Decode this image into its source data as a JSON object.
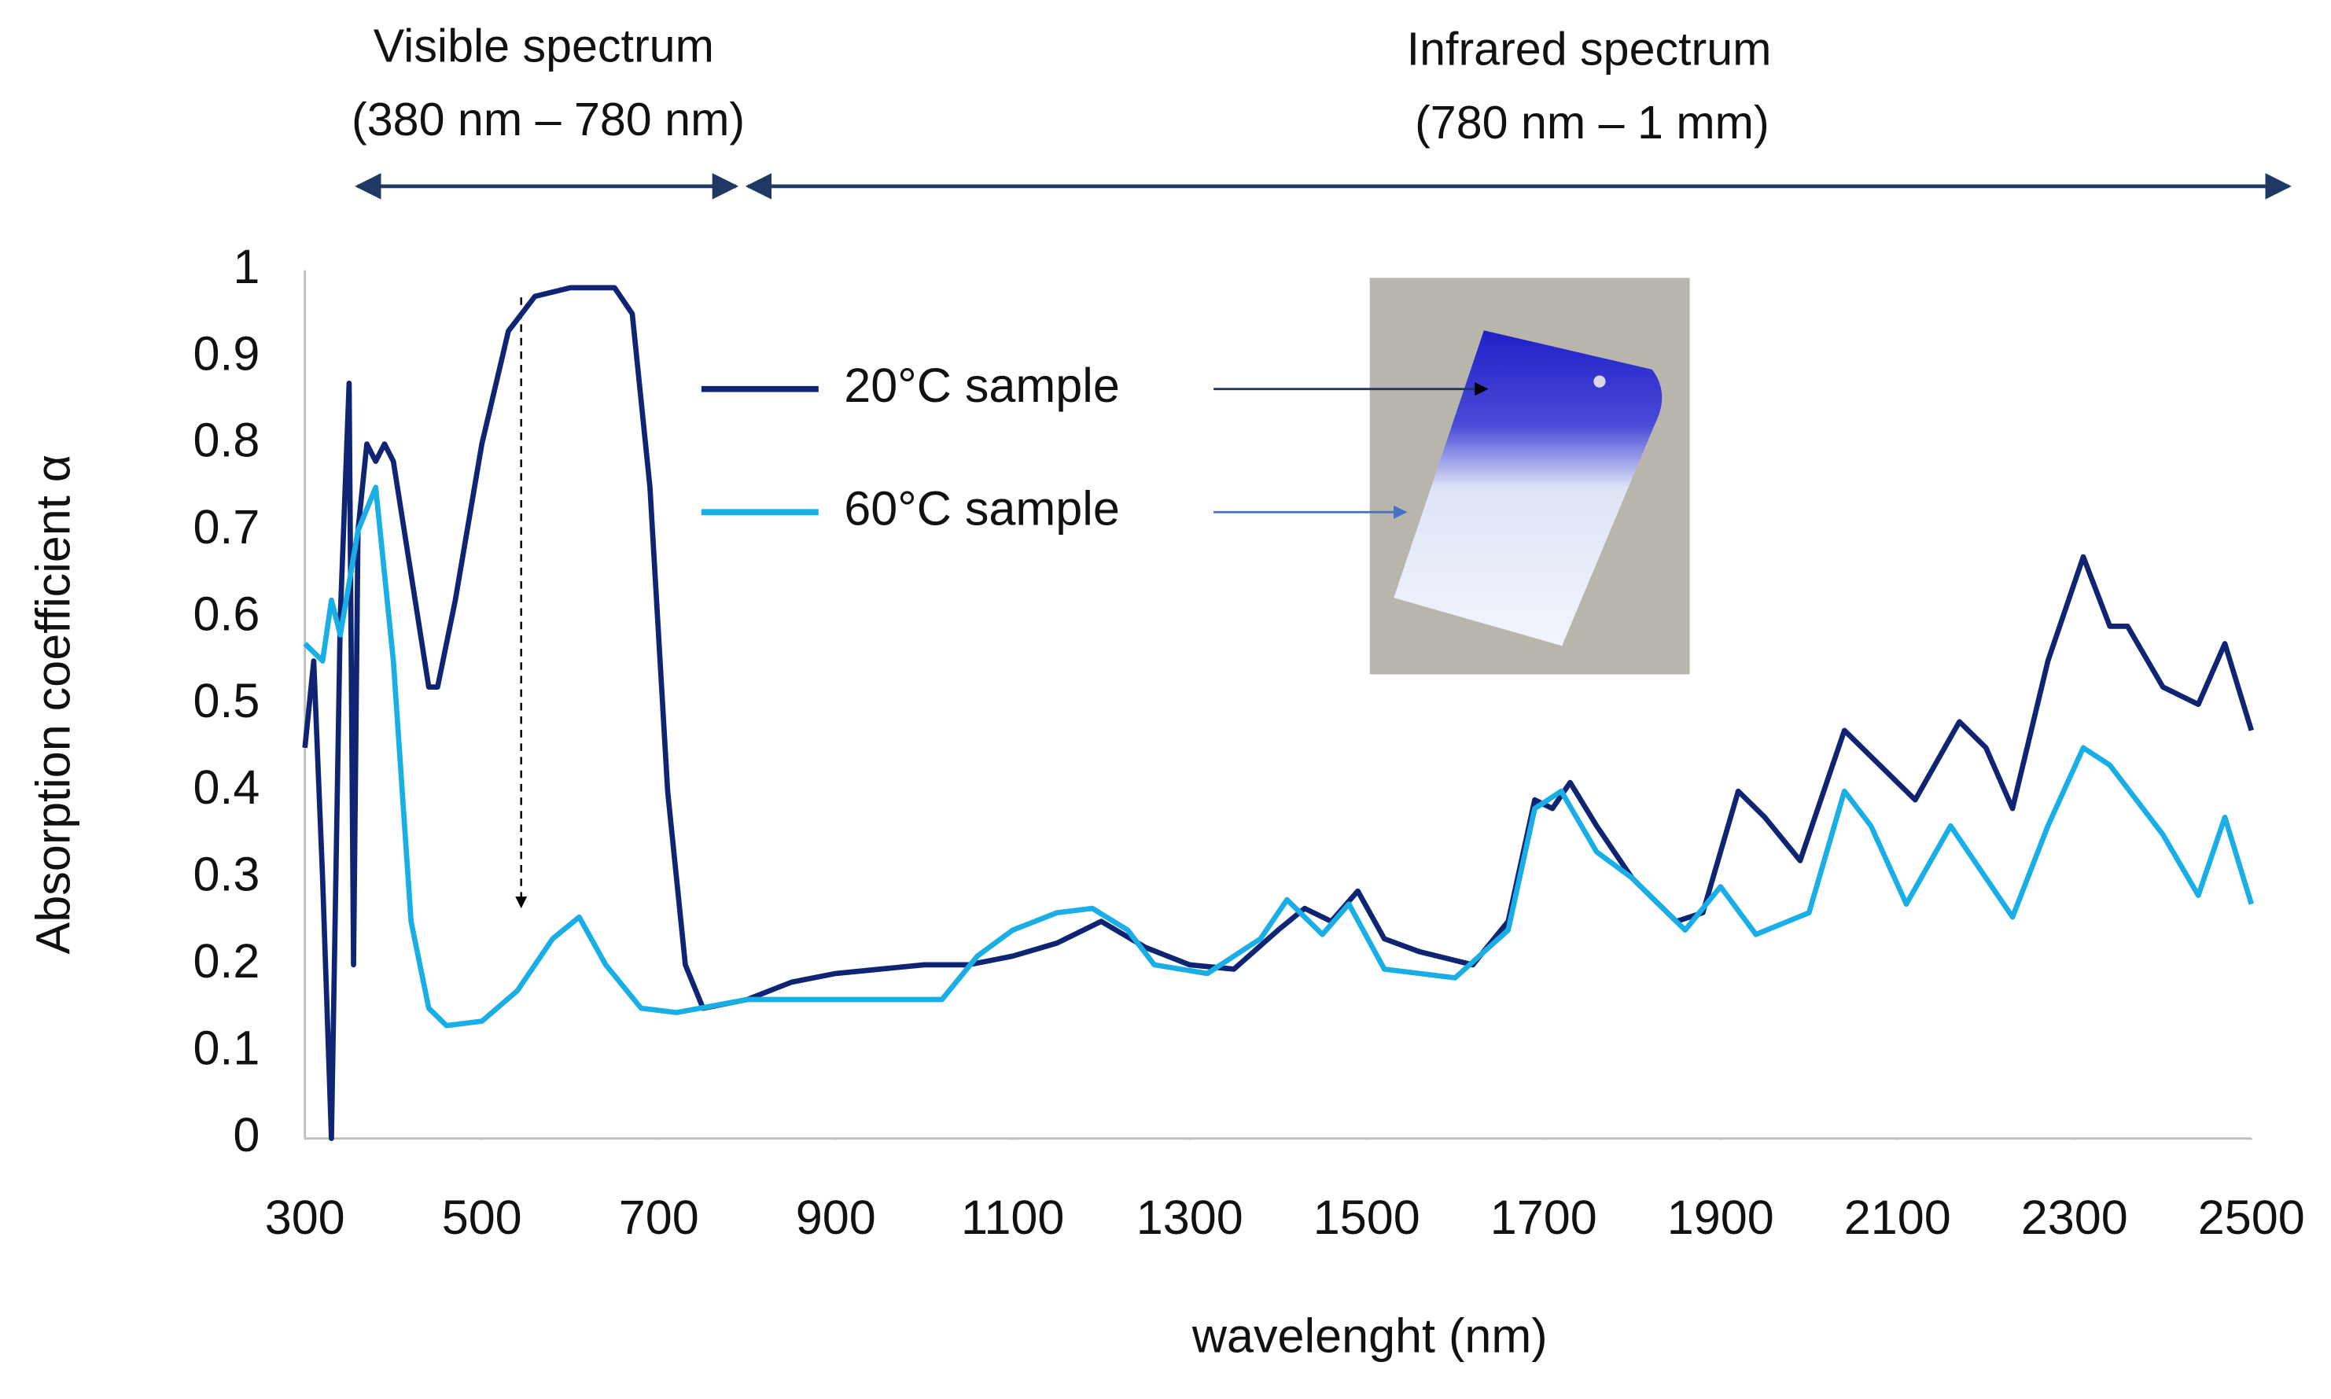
{
  "chart_data": {
    "type": "line",
    "xlabel": "wavelenght  (nm)",
    "ylabel": "Absorption coefficient α",
    "annotations": [
      "Visible spectrum",
      "(380 nm – 780 nm)",
      "Infrared spectrum",
      "(780 nm – 1 mm)"
    ],
    "xlim": [
      300,
      2500
    ],
    "xticks": [
      300,
      500,
      700,
      900,
      1100,
      1300,
      1500,
      1700,
      1900,
      2100,
      2300,
      2500
    ],
    "ylim": [
      0,
      1
    ],
    "yticks": [
      0,
      0.1,
      0.2,
      0.3,
      0.4,
      0.5,
      0.6,
      0.7,
      0.8,
      0.9,
      1
    ],
    "grid": false,
    "legend": "upper center",
    "series": [
      {
        "name": "20°C sample",
        "color": "#0f2472",
        "x": [
          300,
          310,
          320,
          330,
          340,
          350,
          355,
          360,
          370,
          380,
          390,
          400,
          420,
          440,
          450,
          470,
          500,
          530,
          560,
          600,
          650,
          670,
          690,
          710,
          730,
          750,
          800,
          850,
          900,
          950,
          1000,
          1050,
          1100,
          1150,
          1200,
          1250,
          1300,
          1350,
          1400,
          1430,
          1460,
          1490,
          1520,
          1560,
          1620,
          1660,
          1690,
          1710,
          1730,
          1760,
          1800,
          1850,
          1880,
          1920,
          1950,
          1990,
          2040,
          2080,
          2120,
          2170,
          2200,
          2230,
          2270,
          2310,
          2340,
          2360,
          2400,
          2440,
          2470,
          2500
        ],
        "values": [
          0.45,
          0.55,
          0.3,
          0.0,
          0.6,
          0.87,
          0.2,
          0.7,
          0.8,
          0.78,
          0.8,
          0.78,
          0.65,
          0.52,
          0.52,
          0.62,
          0.8,
          0.93,
          0.97,
          0.98,
          0.98,
          0.95,
          0.75,
          0.4,
          0.2,
          0.15,
          0.16,
          0.18,
          0.19,
          0.195,
          0.2,
          0.2,
          0.21,
          0.225,
          0.25,
          0.22,
          0.2,
          0.195,
          0.24,
          0.265,
          0.25,
          0.285,
          0.23,
          0.215,
          0.2,
          0.25,
          0.39,
          0.38,
          0.41,
          0.36,
          0.3,
          0.25,
          0.26,
          0.4,
          0.37,
          0.32,
          0.47,
          0.43,
          0.39,
          0.48,
          0.45,
          0.38,
          0.55,
          0.67,
          0.59,
          0.59,
          0.52,
          0.5,
          0.57,
          0.47
        ]
      },
      {
        "name": "60°C sample",
        "color": "#1aaee6",
        "x": [
          300,
          320,
          330,
          340,
          360,
          380,
          400,
          420,
          440,
          460,
          500,
          540,
          580,
          610,
          640,
          680,
          720,
          800,
          900,
          1020,
          1060,
          1100,
          1150,
          1190,
          1230,
          1260,
          1320,
          1380,
          1410,
          1450,
          1480,
          1520,
          1600,
          1660,
          1690,
          1720,
          1760,
          1800,
          1860,
          1900,
          1940,
          2000,
          2040,
          2070,
          2110,
          2160,
          2200,
          2230,
          2270,
          2310,
          2340,
          2400,
          2440,
          2470,
          2500
        ],
        "values": [
          0.57,
          0.55,
          0.62,
          0.58,
          0.7,
          0.75,
          0.55,
          0.25,
          0.15,
          0.13,
          0.135,
          0.17,
          0.23,
          0.255,
          0.2,
          0.15,
          0.145,
          0.16,
          0.16,
          0.16,
          0.21,
          0.24,
          0.26,
          0.265,
          0.24,
          0.2,
          0.19,
          0.23,
          0.275,
          0.235,
          0.27,
          0.195,
          0.185,
          0.24,
          0.38,
          0.4,
          0.33,
          0.3,
          0.24,
          0.29,
          0.235,
          0.26,
          0.4,
          0.36,
          0.27,
          0.36,
          0.3,
          0.255,
          0.36,
          0.45,
          0.43,
          0.35,
          0.28,
          0.37,
          0.27
        ]
      }
    ]
  }
}
